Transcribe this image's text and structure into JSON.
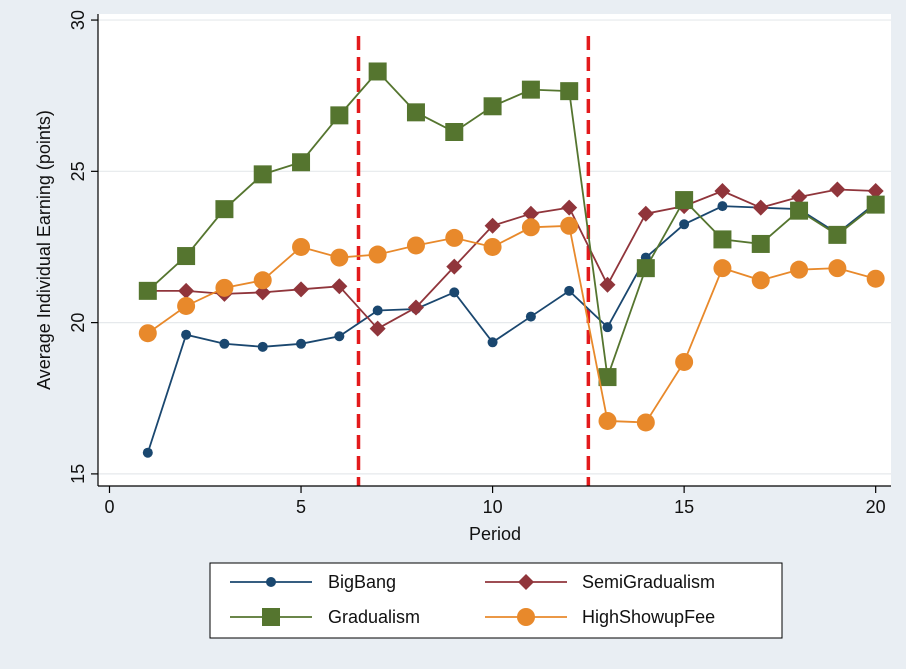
{
  "chart_data": {
    "type": "line",
    "title": "",
    "xlabel": "Period",
    "ylabel": "Average Individual Earning (points)",
    "xlim": [
      -0.3,
      20.4
    ],
    "ylim": [
      14.6,
      30.2
    ],
    "xticks": [
      0,
      5,
      10,
      15,
      20
    ],
    "yticks": [
      15,
      20,
      25,
      30
    ],
    "grid": true,
    "legend_position": "bottom",
    "vlines": [
      6.5,
      12.5
    ],
    "vline_color": "#e31a1c",
    "x": [
      1,
      2,
      3,
      4,
      5,
      6,
      7,
      8,
      9,
      10,
      11,
      12,
      13,
      14,
      15,
      16,
      17,
      18,
      19,
      20
    ],
    "series": [
      {
        "name": "BigBang",
        "color": "#1a476f",
        "marker": "circle-small",
        "values": [
          15.7,
          19.6,
          19.3,
          19.2,
          19.3,
          19.55,
          20.4,
          20.45,
          21.0,
          19.35,
          20.2,
          21.05,
          19.85,
          22.15,
          23.25,
          23.85,
          23.8,
          23.75,
          22.95,
          23.95
        ]
      },
      {
        "name": "SemiGradualism",
        "color": "#90353b",
        "marker": "diamond",
        "values": [
          21.05,
          21.05,
          20.95,
          21.0,
          21.1,
          21.2,
          19.8,
          20.5,
          21.85,
          23.2,
          23.6,
          23.8,
          21.25,
          23.6,
          23.85,
          24.35,
          23.8,
          24.15,
          24.4,
          24.35
        ]
      },
      {
        "name": "Gradualism",
        "color": "#55752f",
        "marker": "square",
        "values": [
          21.05,
          22.2,
          23.75,
          24.9,
          25.3,
          26.85,
          28.3,
          26.95,
          26.3,
          27.15,
          27.7,
          27.65,
          18.2,
          21.8,
          24.05,
          22.75,
          22.6,
          23.7,
          22.9,
          23.9
        ]
      },
      {
        "name": "HighShowupFee",
        "color": "#e8892b",
        "marker": "circle",
        "values": [
          19.65,
          20.55,
          21.15,
          21.4,
          22.5,
          22.15,
          22.25,
          22.55,
          22.8,
          22.5,
          23.15,
          23.2,
          16.75,
          16.7,
          18.7,
          21.8,
          21.4,
          21.75,
          21.8,
          21.45
        ]
      }
    ]
  }
}
